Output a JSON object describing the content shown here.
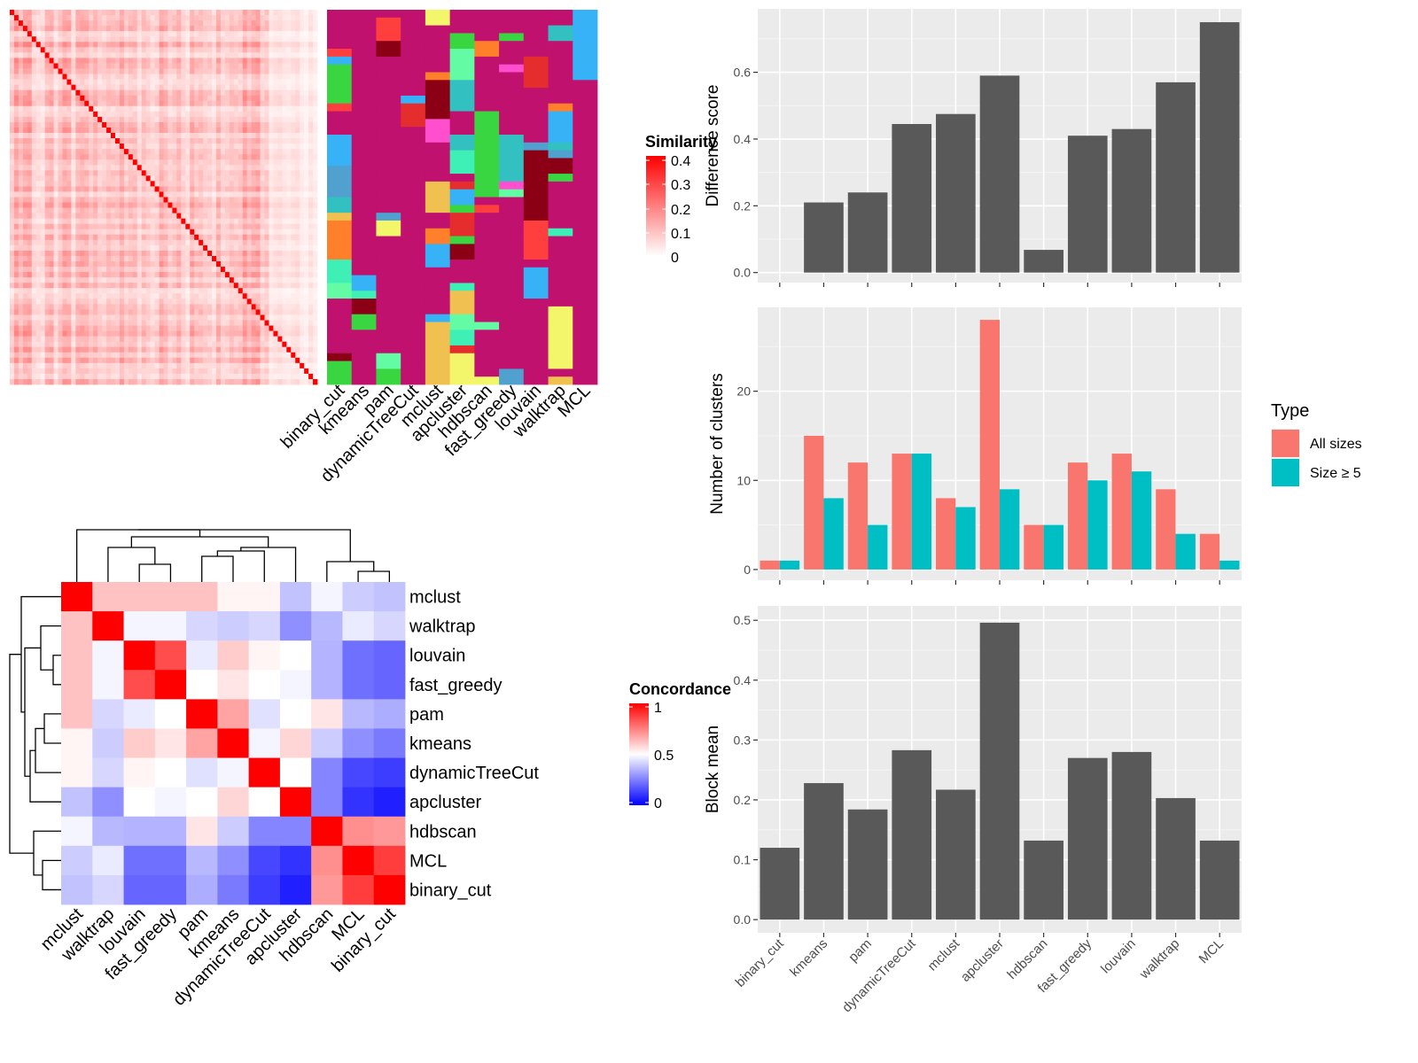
{
  "methods": [
    "binary_cut",
    "kmeans",
    "pam",
    "dynamicTreeCut",
    "mclust",
    "apcluster",
    "hdbscan",
    "fast_greedy",
    "louvain",
    "walktrap",
    "MCL"
  ],
  "similarity_legend": {
    "title": "Similarity",
    "ticks": [
      "0.4",
      "0.3",
      "0.2",
      "0.1",
      "0"
    ],
    "colors": {
      "low": "#ffffff",
      "high": "#ff0000"
    }
  },
  "concordance": {
    "legend_title": "Concordance",
    "legend_ticks": [
      "1",
      "0.5",
      "0"
    ],
    "colors": {
      "low": "#0000ff",
      "mid": "#ffffff",
      "high": "#ff0000"
    },
    "order": [
      "mclust",
      "walktrap",
      "louvain",
      "fast_greedy",
      "pam",
      "kmeans",
      "dynamicTreeCut",
      "apcluster",
      "hdbscan",
      "MCL",
      "binary_cut"
    ],
    "matrix": [
      [
        1.0,
        0.62,
        0.62,
        0.62,
        0.62,
        0.52,
        0.52,
        0.38,
        0.48,
        0.4,
        0.38
      ],
      [
        0.62,
        1.0,
        0.48,
        0.48,
        0.42,
        0.4,
        0.42,
        0.28,
        0.36,
        0.46,
        0.42
      ],
      [
        0.62,
        0.48,
        1.0,
        0.85,
        0.46,
        0.6,
        0.52,
        0.5,
        0.35,
        0.22,
        0.2
      ],
      [
        0.62,
        0.48,
        0.85,
        1.0,
        0.5,
        0.55,
        0.5,
        0.48,
        0.35,
        0.22,
        0.2
      ],
      [
        0.62,
        0.42,
        0.46,
        0.5,
        1.0,
        0.68,
        0.44,
        0.5,
        0.55,
        0.36,
        0.34
      ],
      [
        0.52,
        0.4,
        0.6,
        0.55,
        0.68,
        1.0,
        0.48,
        0.58,
        0.4,
        0.28,
        0.24
      ],
      [
        0.52,
        0.42,
        0.52,
        0.5,
        0.44,
        0.48,
        1.0,
        0.5,
        0.26,
        0.14,
        0.12
      ],
      [
        0.38,
        0.28,
        0.5,
        0.48,
        0.5,
        0.58,
        0.5,
        1.0,
        0.26,
        0.1,
        0.06
      ],
      [
        0.48,
        0.36,
        0.35,
        0.35,
        0.55,
        0.4,
        0.26,
        0.26,
        1.0,
        0.72,
        0.7
      ],
      [
        0.4,
        0.46,
        0.22,
        0.22,
        0.36,
        0.28,
        0.14,
        0.1,
        0.72,
        1.0,
        0.88
      ],
      [
        0.38,
        0.42,
        0.2,
        0.2,
        0.34,
        0.24,
        0.12,
        0.06,
        0.7,
        0.88,
        1.0
      ]
    ]
  },
  "chart_data": [
    {
      "type": "bar",
      "categories": [
        "binary_cut",
        "kmeans",
        "pam",
        "dynamicTreeCut",
        "mclust",
        "apcluster",
        "hdbscan",
        "fast_greedy",
        "louvain",
        "walktrap",
        "MCL"
      ],
      "values": [
        0,
        0.21,
        0.24,
        0.445,
        0.475,
        0.59,
        0.068,
        0.41,
        0.43,
        0.57,
        0.75
      ],
      "ylabel": "Difference score",
      "ylim": [
        -0.03,
        0.79
      ],
      "yticks": [
        "0.0",
        "0.2",
        "0.4",
        "0.6"
      ],
      "grid": true,
      "color": "#595959"
    },
    {
      "type": "bar",
      "categories": [
        "binary_cut",
        "kmeans",
        "pam",
        "dynamicTreeCut",
        "mclust",
        "apcluster",
        "hdbscan",
        "fast_greedy",
        "louvain",
        "walktrap",
        "MCL"
      ],
      "series": [
        {
          "name": "All sizes",
          "values": [
            1,
            15,
            12,
            13,
            8,
            28,
            5,
            12,
            13,
            9,
            4
          ],
          "color": "#f8766d"
        },
        {
          "name": "Size ≥ 5",
          "values": [
            1,
            8,
            5,
            13,
            7,
            9,
            5,
            10,
            11,
            4,
            1
          ],
          "color": "#00bfc4"
        }
      ],
      "ylabel": "Number of clusters",
      "ylim": [
        -1.2,
        29.4
      ],
      "yticks": [
        "0",
        "10",
        "20"
      ],
      "legend_title": "Type",
      "legend_position": "right",
      "grid": true
    },
    {
      "type": "bar",
      "categories": [
        "binary_cut",
        "kmeans",
        "pam",
        "dynamicTreeCut",
        "mclust",
        "apcluster",
        "hdbscan",
        "fast_greedy",
        "louvain",
        "walktrap",
        "MCL"
      ],
      "values": [
        0.12,
        0.228,
        0.184,
        0.283,
        0.217,
        0.496,
        0.132,
        0.27,
        0.28,
        0.203,
        0.132
      ],
      "ylabel": "Block mean",
      "ylim": [
        -0.022,
        0.524
      ],
      "yticks": [
        "0.0",
        "0.1",
        "0.2",
        "0.3",
        "0.4",
        "0.5"
      ],
      "grid": true,
      "color": "#595959"
    }
  ]
}
